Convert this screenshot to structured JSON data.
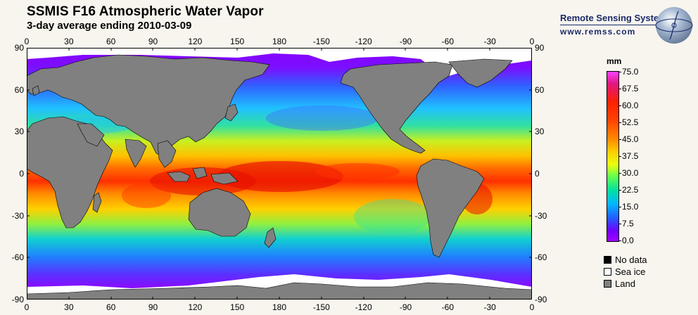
{
  "header": {
    "title": "SSMIS F16 Atmospheric Water Vapor",
    "subtitle": "3-day average ending 2010-03-09"
  },
  "org": {
    "name": "Remote Sensing Systems",
    "url": "www.remss.com",
    "logo_icon": "globe-logo-icon"
  },
  "axes": {
    "lon_labels": [
      "0",
      "30",
      "60",
      "90",
      "120",
      "150",
      "180",
      "-150",
      "-120",
      "-90",
      "-60",
      "-30",
      "0"
    ],
    "lat_labels": [
      "90",
      "60",
      "30",
      "0",
      "-30",
      "-60",
      "-90"
    ]
  },
  "colorbar": {
    "unit": "mm",
    "ticks": [
      "75.0",
      "67.5",
      "60.0",
      "52.5",
      "45.0",
      "37.5",
      "30.0",
      "22.5",
      "15.0",
      "7.5",
      "0.0"
    ],
    "colors": [
      "#ff40ff",
      "#e01880",
      "#ff2000",
      "#ff8c00",
      "#ffcc00",
      "#e8ff10",
      "#60ff50",
      "#00e0a0",
      "#00b8ff",
      "#2060ff",
      "#a000ff"
    ]
  },
  "legend": [
    {
      "label": "No data",
      "color": "#000000"
    },
    {
      "label": "Sea ice",
      "color": "#ffffff"
    },
    {
      "label": "Land",
      "color": "#808080"
    }
  ],
  "map_colors": {
    "land": "#808080",
    "ice": "#ffffff",
    "nodata": "#000000"
  }
}
